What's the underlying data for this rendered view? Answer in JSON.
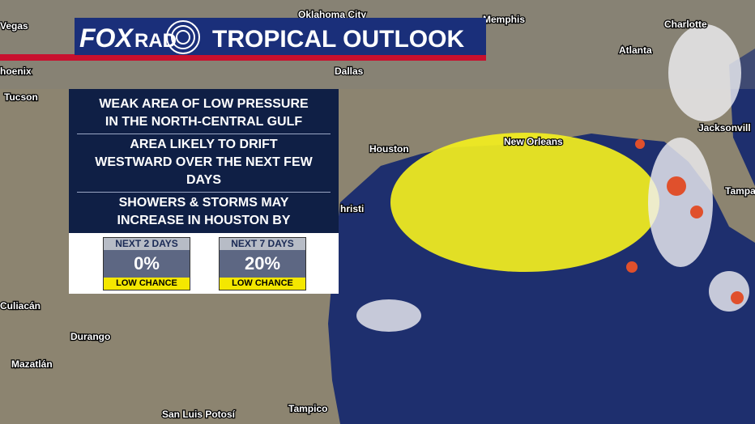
{
  "header": {
    "logo_fox": "FOX",
    "logo_rad": "RAD",
    "title": "TROPICAL OUTLOOK"
  },
  "map": {
    "cities": [
      "Vegas",
      "Oklahoma City",
      "Memphis",
      "Charlotte",
      "hoenix",
      "Dallas",
      "Atlanta",
      "Tucson",
      "Houston",
      "New Orleans",
      "Jacksonvill",
      "hristi",
      "Tampa",
      "Culiacán",
      "Durango",
      "Mazatlán",
      "San Luis Potosí",
      "Tampico"
    ]
  },
  "panel": {
    "items": [
      "WEAK AREA OF LOW PRESSURE IN THE NORTH-CENTRAL GULF",
      "AREA LIKELY TO DRIFT WESTWARD OVER THE NEXT FEW DAYS",
      "SHOWERS & STORMS MAY INCREASE IN HOUSTON BY TUESDAY"
    ],
    "chances": [
      {
        "period": "NEXT 2 DAYS",
        "percent": "0%",
        "level": "LOW CHANCE"
      },
      {
        "period": "NEXT 7 DAYS",
        "percent": "20%",
        "level": "LOW CHANCE"
      }
    ]
  }
}
